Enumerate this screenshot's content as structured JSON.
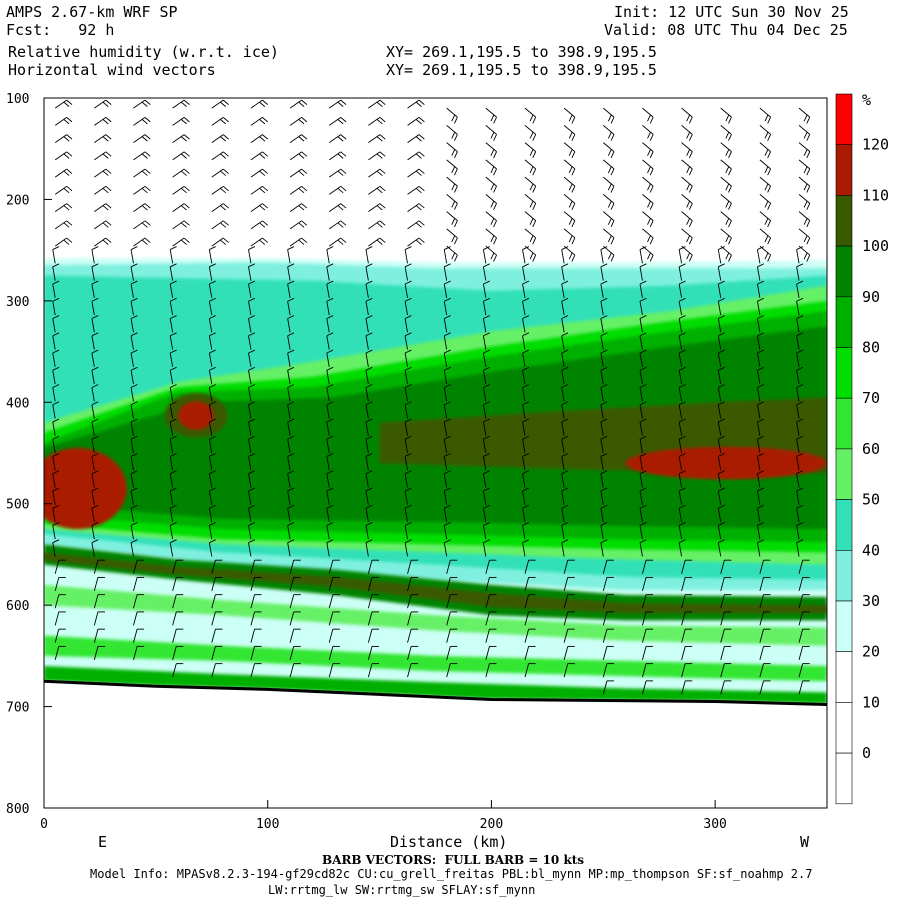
{
  "header": {
    "model": "AMPS 2.67-km WRF SP",
    "fcst": "Fcst:   92 h",
    "field1": "Relative humidity (w.r.t. ice)",
    "field2": "Horizontal wind vectors",
    "init": "Init: 12 UTC Sun 30 Nov 25",
    "valid": "Valid: 08 UTC Thu 04 Dec 25",
    "xy1": "XY= 269.1,195.5 to 398.9,195.5",
    "xy2": "XY= 269.1,195.5 to 398.9,195.5"
  },
  "footer": {
    "barb_note": "BARB VECTORS:  FULL BARB = 10 kts",
    "model_info": "Model Info: MPASv8.2.3-194-gf29cd82c CU:cu_grell_freitas PBL:bl_mynn MP:mp_thompson SF:sf_noahmp 2.7",
    "model_info2": "LW:rrtmg_lw SW:rrtmg_sw SFLAY:sf_mynn"
  },
  "axis_text": {
    "xlabel": "Distance (km)",
    "left_end": "E",
    "right_end": "W",
    "colorbar_unit": "%"
  },
  "colors": {
    "c0": "#ffffff",
    "c10": "#ffffff",
    "c20": "#ffffff",
    "c30": "#ccfff5",
    "c40": "#7ff0e0",
    "c50": "#33e0b8",
    "c60": "#66f066",
    "c70": "#33e633",
    "c80": "#00dd00",
    "c90": "#00b000",
    "c100": "#008400",
    "c110": "#3a5a00",
    "c120": "#aa1a00",
    "c130": "#ff0000"
  },
  "chart_data": {
    "type": "heatmap",
    "description_of_axes": "vertical cross-section",
    "xlabel": "Distance (km)",
    "ylabel": "",
    "xlim": [
      0,
      350
    ],
    "ylim": [
      800,
      100
    ],
    "x_ticks": [
      0,
      100,
      200,
      300
    ],
    "y_ticks": [
      100,
      200,
      300,
      400,
      500,
      600,
      700,
      800
    ],
    "colorbar": {
      "unit": "%",
      "levels": [
        0,
        10,
        20,
        30,
        40,
        50,
        60,
        70,
        80,
        90,
        100,
        110,
        120
      ],
      "tick_labels": [
        "0",
        "10",
        "20",
        "30",
        "40",
        "50",
        "60",
        "70",
        "80",
        "90",
        "100",
        "110",
        "120"
      ]
    },
    "surface_pressure": [
      [
        0,
        675
      ],
      [
        50,
        680
      ],
      [
        100,
        683
      ],
      [
        150,
        688
      ],
      [
        200,
        693
      ],
      [
        250,
        694
      ],
      [
        300,
        695
      ],
      [
        350,
        698
      ]
    ],
    "features": [
      {
        "label": "moist layer top",
        "level_pct": 30,
        "pressure_at_x": [
          [
            0,
            260
          ],
          [
            175,
            262
          ],
          [
            350,
            262
          ]
        ]
      },
      {
        "label": "max >110",
        "x": [
          55,
          80
        ],
        "p": [
          395,
          430
        ]
      },
      {
        "label": "max >110",
        "x": [
          0,
          35
        ],
        "p": [
          450,
          530
        ]
      },
      {
        "label": "max >110",
        "x": [
          265,
          350
        ],
        "p": [
          440,
          475
        ]
      }
    ]
  }
}
